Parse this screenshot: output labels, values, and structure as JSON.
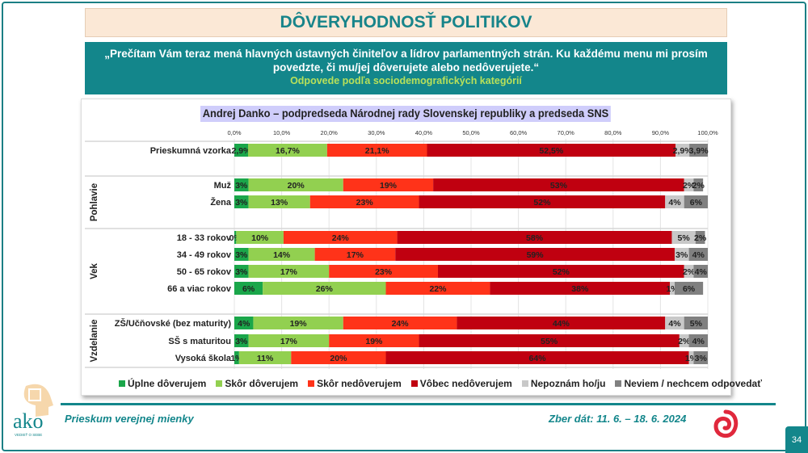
{
  "header": {
    "title": "DÔVERYHODNOSŤ POLITIKOV",
    "question": "„Prečítam Vám teraz mená hlavných ústavných činiteľov a lídrov parlamentných strán. Ku každému menu mi prosím povedzte, či mu/jej dôverujete alebo nedôverujete.“",
    "subtitle": "Odpovede podľa sociodemografických kategórií"
  },
  "chart_data": {
    "type": "bar",
    "orientation": "horizontal",
    "stacked": true,
    "title": "Andrej Danko – podpredseda Národnej rady Slovenskej republiky a predseda SNS",
    "xlim": [
      0,
      100
    ],
    "ticks": [
      "0,0%",
      "10,0%",
      "20,0%",
      "30,0%",
      "40,0%",
      "50,0%",
      "60,0%",
      "70,0%",
      "80,0%",
      "90,0%",
      "100,0%"
    ],
    "legend_position": "bottom",
    "series": [
      {
        "name": "Úplne dôverujem",
        "color": "#1aa64a"
      },
      {
        "name": "Skôr dôverujem",
        "color": "#92d050"
      },
      {
        "name": "Skôr nedôverujem",
        "color": "#ff3319"
      },
      {
        "name": "Vôbec nedôverujem",
        "color": "#c00010"
      },
      {
        "name": "Nepoznám ho/ju",
        "color": "#c8c8c8"
      },
      {
        "name": "Neviem / nechcem odpovedať",
        "color": "#808080"
      }
    ],
    "groups": [
      {
        "name": "",
        "rows": [
          {
            "label": "Prieskumná vzorka",
            "values": [
              2.9,
              16.7,
              21.1,
              52.5,
              2.9,
              3.9
            ],
            "labels": [
              "2,9%",
              "16,7%",
              "21,1%",
              "52,5%",
              "2,9%",
              "3,9%"
            ]
          }
        ]
      },
      {
        "name": "Pohlavie",
        "rows": [
          {
            "label": "Muž",
            "values": [
              3,
              20,
              19,
              53,
              2,
              2
            ],
            "labels": [
              "3%",
              "20%",
              "19%",
              "53%",
              "2%",
              "2%"
            ]
          },
          {
            "label": "Žena",
            "values": [
              3,
              13,
              23,
              52,
              4,
              6
            ],
            "labels": [
              "3%",
              "13%",
              "23%",
              "52%",
              "4%",
              "6%"
            ]
          }
        ]
      },
      {
        "name": "Vek",
        "rows": [
          {
            "label": "18 - 33 rokov",
            "values": [
              0.4,
              10,
              24,
              58,
              5,
              2
            ],
            "labels": [
              "0%",
              "10%",
              "24%",
              "58%",
              "5%",
              "2%"
            ]
          },
          {
            "label": "34 - 49 rokov",
            "values": [
              3,
              14,
              17,
              59,
              3,
              4
            ],
            "labels": [
              "3%",
              "14%",
              "17%",
              "59%",
              "3%",
              "4%"
            ]
          },
          {
            "label": "50 - 65 rokov",
            "values": [
              3,
              17,
              23,
              52,
              2,
              4
            ],
            "labels": [
              "3%",
              "17%",
              "23%",
              "52%",
              "2%",
              "4%"
            ]
          },
          {
            "label": "66 a viac rokov",
            "values": [
              6,
              26,
              22,
              38,
              1,
              6
            ],
            "labels": [
              "6%",
              "26%",
              "22%",
              "38%",
              "1%",
              "6%"
            ]
          }
        ]
      },
      {
        "name": "Vzdelanie",
        "rows": [
          {
            "label": "ZŠ/Učňovské (bez maturity)",
            "values": [
              4,
              19,
              24,
              44,
              4,
              5
            ],
            "labels": [
              "4%",
              "19%",
              "24%",
              "44%",
              "4%",
              "5%"
            ]
          },
          {
            "label": "SŠ s maturitou",
            "values": [
              3,
              17,
              19,
              55,
              2,
              4
            ],
            "labels": [
              "3%",
              "17%",
              "19%",
              "55%",
              "2%",
              "4%"
            ]
          },
          {
            "label": "Vysoká škola",
            "values": [
              1,
              11,
              20,
              64,
              1,
              3
            ],
            "labels": [
              "1%",
              "11%",
              "20%",
              "64%",
              "1%",
              "3%"
            ]
          }
        ]
      }
    ]
  },
  "footer": {
    "left": "Prieskum verejnej mienky",
    "right": "Zber dát: 11. 6. – 18. 6. 2024",
    "page": "34",
    "logo_text": "ako",
    "logo_tagline": "VEDIEŤ O SEBE"
  }
}
